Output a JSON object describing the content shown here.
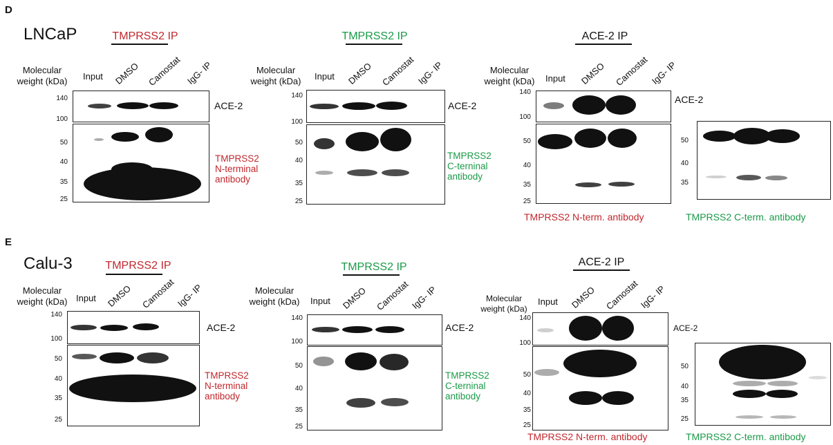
{
  "panels": {
    "D": {
      "letter": "D",
      "cell_line": "LNCaP",
      "ip_titles": [
        "TMPRSS2 IP",
        "TMPRSS2 IP",
        "ACE-2 IP"
      ],
      "mw_label": [
        "Molecular",
        "weight (kDa)"
      ],
      "lanes": [
        "Input",
        "DMSO",
        "Camostat",
        "IgG- IP"
      ],
      "ace2_label": "ACE-2",
      "ticks_ace": [
        "140",
        "100"
      ],
      "ticks_tmp": [
        "50",
        "40",
        "35",
        "25"
      ],
      "n_terminal_antibody": [
        "TMPRSS2",
        "N-terminal",
        "antibody"
      ],
      "c_terminal_antibody": [
        "TMPRSS2",
        "C-terninal",
        "antibody"
      ],
      "n_term_caption": "TMPRSS2 N-term. antibody",
      "c_term_caption": "TMPRSS2 C-term. antibody"
    },
    "E": {
      "letter": "E",
      "cell_line": "Calu-3",
      "ip_titles": [
        "TMPRSS2 IP",
        "TMPRSS2 IP",
        "ACE-2 IP"
      ],
      "mw_label": [
        "Molecular",
        "weight (kDa)"
      ],
      "lanes": [
        "Input",
        "DMSO",
        "Camostat",
        "IgG- IP"
      ],
      "ace2_label": "ACE-2",
      "ticks_ace": [
        "140",
        "100"
      ],
      "ticks_tmp": [
        "50",
        "40",
        "35",
        "25"
      ],
      "n_terminal_antibody": [
        "TMPRSS2",
        "N-terminal",
        "antibody"
      ],
      "c_terminal_antibody": [
        "TMPRSS2",
        "C-terninal",
        "antibody"
      ],
      "n_term_caption": "TMPRSS2 N-term. antibody",
      "c_term_caption": "TMPRSS2 C-term. antibody"
    }
  },
  "colors": {
    "red": "#c0272d",
    "green": "#1a9a48",
    "band": "#111111"
  }
}
